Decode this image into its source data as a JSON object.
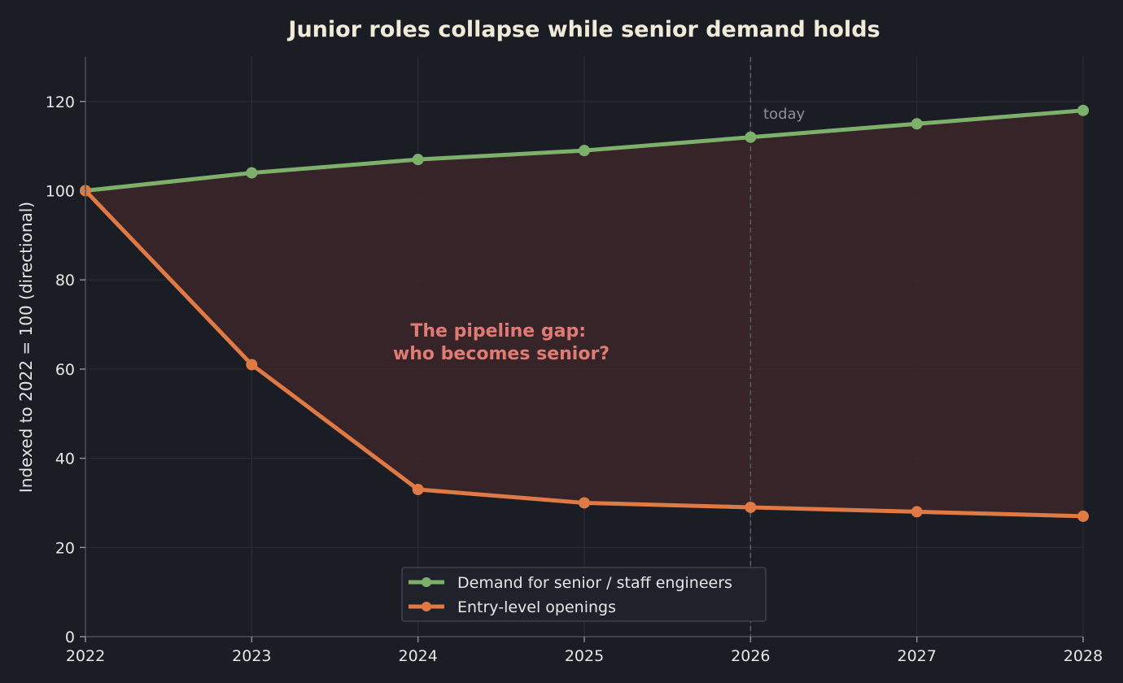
{
  "chart_data": {
    "type": "line",
    "title": "Junior roles collapse while senior demand holds",
    "xlabel": "",
    "ylabel": "Indexed to 2022 = 100 (directional)",
    "x": [
      2022,
      2023,
      2024,
      2025,
      2026,
      2027,
      2028
    ],
    "x_tick_labels": [
      "2022",
      "2023",
      "2024",
      "2025",
      "2026",
      "2027",
      "2028"
    ],
    "xlim": [
      2022,
      2028
    ],
    "ylim": [
      0,
      130
    ],
    "y_ticks": [
      0,
      20,
      40,
      60,
      80,
      100,
      120
    ],
    "y_tick_labels": [
      "0",
      "20",
      "40",
      "60",
      "80",
      "100",
      "120"
    ],
    "grid": true,
    "legend_position": "bottom-center",
    "series": [
      {
        "name": "Demand for senior / staff engineers",
        "values": [
          100,
          104,
          107,
          109,
          112,
          115,
          118
        ],
        "color": "#7db06a"
      },
      {
        "name": "Entry-level openings",
        "values": [
          100,
          61,
          33,
          30,
          29,
          28,
          27
        ],
        "color": "#e07a45"
      }
    ],
    "fill_between": {
      "color": "#3a2629"
    },
    "reference_line": {
      "x": 2026,
      "label": "today"
    },
    "annotation": {
      "lines": [
        "The pipeline gap:",
        "who becomes senior?"
      ],
      "color": "#e07b74"
    }
  }
}
